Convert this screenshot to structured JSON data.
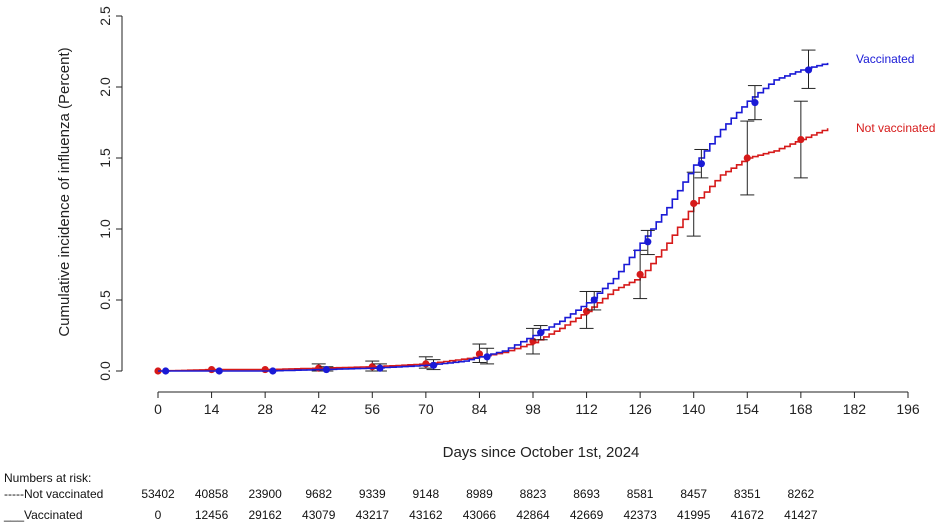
{
  "chart_data": {
    "type": "line",
    "xlabel": "Days since October 1st, 2024",
    "ylabel": "Cumulative incidence of influenza (Percent)",
    "xlim": [
      0,
      196
    ],
    "ylim": [
      0,
      2.5
    ],
    "xticks": [
      0,
      14,
      28,
      42,
      56,
      70,
      84,
      98,
      112,
      126,
      140,
      154,
      168,
      182,
      196
    ],
    "yticks": [
      "0.0",
      "0.5",
      "1.0",
      "1.5",
      "2.0",
      "2.5"
    ],
    "series": [
      {
        "name": "Vaccinated",
        "color": "#1a1ad6",
        "curve": [
          [
            0,
            0
          ],
          [
            14,
            0
          ],
          [
            28,
            0
          ],
          [
            42,
            0.01
          ],
          [
            56,
            0.02
          ],
          [
            70,
            0.04
          ],
          [
            80,
            0.07
          ],
          [
            84,
            0.1
          ],
          [
            90,
            0.14
          ],
          [
            98,
            0.25
          ],
          [
            105,
            0.35
          ],
          [
            112,
            0.48
          ],
          [
            119,
            0.65
          ],
          [
            126,
            0.9
          ],
          [
            133,
            1.15
          ],
          [
            140,
            1.45
          ],
          [
            147,
            1.7
          ],
          [
            154,
            1.9
          ],
          [
            161,
            2.05
          ],
          [
            168,
            2.12
          ],
          [
            175,
            2.17
          ]
        ],
        "points": [
          {
            "x": 2,
            "y": 0.0
          },
          {
            "x": 16,
            "y": 0.0
          },
          {
            "x": 30,
            "y": 0.0
          },
          {
            "x": 44,
            "y": 0.01,
            "lo": 0.0,
            "hi": 0.03
          },
          {
            "x": 58,
            "y": 0.02,
            "lo": 0.0,
            "hi": 0.05
          },
          {
            "x": 72,
            "y": 0.04,
            "lo": 0.01,
            "hi": 0.08
          },
          {
            "x": 86,
            "y": 0.1,
            "lo": 0.05,
            "hi": 0.16
          },
          {
            "x": 100,
            "y": 0.27,
            "lo": 0.22,
            "hi": 0.32
          },
          {
            "x": 114,
            "y": 0.5,
            "lo": 0.43,
            "hi": 0.56
          },
          {
            "x": 128,
            "y": 0.91,
            "lo": 0.82,
            "hi": 0.99
          },
          {
            "x": 142,
            "y": 1.46,
            "lo": 1.36,
            "hi": 1.56
          },
          {
            "x": 156,
            "y": 1.89,
            "lo": 1.77,
            "hi": 2.01
          },
          {
            "x": 170,
            "y": 2.12,
            "lo": 1.99,
            "hi": 2.26
          }
        ]
      },
      {
        "name": "Not vaccinated",
        "color": "#d61a1a",
        "curve": [
          [
            0,
            0
          ],
          [
            14,
            0.01
          ],
          [
            28,
            0.01
          ],
          [
            42,
            0.02
          ],
          [
            56,
            0.03
          ],
          [
            70,
            0.05
          ],
          [
            84,
            0.1
          ],
          [
            90,
            0.13
          ],
          [
            98,
            0.2
          ],
          [
            105,
            0.3
          ],
          [
            112,
            0.42
          ],
          [
            119,
            0.57
          ],
          [
            126,
            0.66
          ],
          [
            133,
            0.9
          ],
          [
            140,
            1.18
          ],
          [
            147,
            1.38
          ],
          [
            154,
            1.5
          ],
          [
            161,
            1.55
          ],
          [
            168,
            1.63
          ],
          [
            175,
            1.71
          ]
        ],
        "points": [
          {
            "x": 0,
            "y": 0.0
          },
          {
            "x": 14,
            "y": 0.01
          },
          {
            "x": 28,
            "y": 0.01
          },
          {
            "x": 42,
            "y": 0.02,
            "lo": 0.0,
            "hi": 0.05
          },
          {
            "x": 56,
            "y": 0.03,
            "lo": 0.0,
            "hi": 0.07
          },
          {
            "x": 70,
            "y": 0.05,
            "lo": 0.02,
            "hi": 0.1
          },
          {
            "x": 84,
            "y": 0.12,
            "lo": 0.06,
            "hi": 0.19
          },
          {
            "x": 98,
            "y": 0.21,
            "lo": 0.12,
            "hi": 0.3
          },
          {
            "x": 112,
            "y": 0.42,
            "lo": 0.3,
            "hi": 0.56
          },
          {
            "x": 126,
            "y": 0.68,
            "lo": 0.51,
            "hi": 0.85
          },
          {
            "x": 140,
            "y": 1.18,
            "lo": 0.95,
            "hi": 1.4
          },
          {
            "x": 154,
            "y": 1.5,
            "lo": 1.24,
            "hi": 1.76
          },
          {
            "x": 168,
            "y": 1.63,
            "lo": 1.36,
            "hi": 1.9
          }
        ]
      }
    ]
  },
  "legend": {
    "vaccinated": "Vaccinated",
    "not_vaccinated": "Not vaccinated"
  },
  "risk_table": {
    "title": "Numbers at risk:",
    "rows": [
      {
        "label": "-----Not vaccinated",
        "color": "#d61a1a",
        "values": [
          "53402",
          "40858",
          "23900",
          "9682",
          "9339",
          "9148",
          "8989",
          "8823",
          "8693",
          "8581",
          "8457",
          "8351",
          "8262"
        ]
      },
      {
        "label": "___Vaccinated",
        "color": "#1a1ad6",
        "values": [
          "0",
          "12456",
          "29162",
          "43079",
          "43217",
          "43162",
          "43066",
          "42864",
          "42669",
          "42373",
          "41995",
          "41672",
          "41427"
        ]
      }
    ]
  }
}
